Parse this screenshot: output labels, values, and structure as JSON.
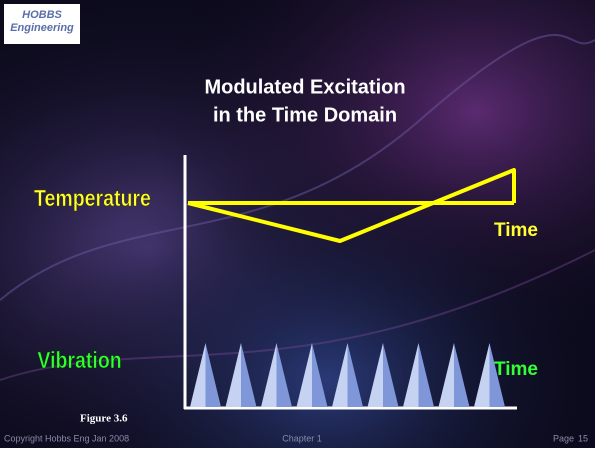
{
  "logo": {
    "line1": "HOBBS",
    "line2": "Engineering"
  },
  "title": {
    "line1": "Modulated Excitation",
    "line2": "in the Time Domain"
  },
  "temperature": {
    "label": "Temperature",
    "axis_label": "Time"
  },
  "vibration": {
    "label": "Vibration",
    "axis_label": "Time"
  },
  "figure_caption": "Figure 3.6",
  "footer": {
    "copyright": "Copyright Hobbs Eng Jan 2008",
    "chapter": "Chapter 1",
    "page_label": "Page",
    "page_number": "15"
  }
}
